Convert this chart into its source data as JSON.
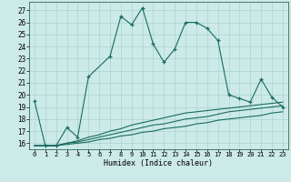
{
  "xlabel": "Humidex (Indice chaleur)",
  "background_color": "#cceae8",
  "grid_color": "#aad4d0",
  "line_color": "#1a6b5e",
  "x_values": [
    0,
    1,
    2,
    3,
    4,
    5,
    6,
    7,
    8,
    9,
    10,
    11,
    12,
    13,
    14,
    15,
    16,
    17,
    18,
    19,
    20,
    21,
    22,
    23
  ],
  "series1": [
    19.5,
    15.8,
    15.8,
    17.3,
    16.5,
    21.5,
    null,
    23.2,
    26.5,
    25.8,
    27.2,
    24.2,
    22.7,
    23.8,
    26.0,
    26.0,
    25.5,
    24.5,
    20.0,
    19.7,
    19.4,
    21.3,
    19.8,
    19.0
  ],
  "series2": [
    15.8,
    15.8,
    15.8,
    16.0,
    16.2,
    16.5,
    16.7,
    17.0,
    17.2,
    17.5,
    17.7,
    17.9,
    18.1,
    18.3,
    18.5,
    18.6,
    18.7,
    18.8,
    18.9,
    19.0,
    19.1,
    19.2,
    19.3,
    19.4
  ],
  "series3": [
    15.8,
    15.8,
    15.8,
    16.0,
    16.1,
    16.3,
    16.5,
    16.7,
    16.9,
    17.1,
    17.3,
    17.5,
    17.6,
    17.8,
    18.0,
    18.1,
    18.2,
    18.4,
    18.6,
    18.7,
    18.8,
    18.9,
    19.0,
    19.1
  ],
  "series4": [
    15.8,
    15.8,
    15.8,
    15.9,
    16.0,
    16.1,
    16.3,
    16.4,
    16.6,
    16.7,
    16.9,
    17.0,
    17.2,
    17.3,
    17.4,
    17.6,
    17.7,
    17.9,
    18.0,
    18.1,
    18.2,
    18.3,
    18.5,
    18.6
  ],
  "ylim": [
    15.5,
    27.7
  ],
  "yticks": [
    16,
    17,
    18,
    19,
    20,
    21,
    22,
    23,
    24,
    25,
    26,
    27
  ],
  "xlim": [
    -0.5,
    23.5
  ]
}
